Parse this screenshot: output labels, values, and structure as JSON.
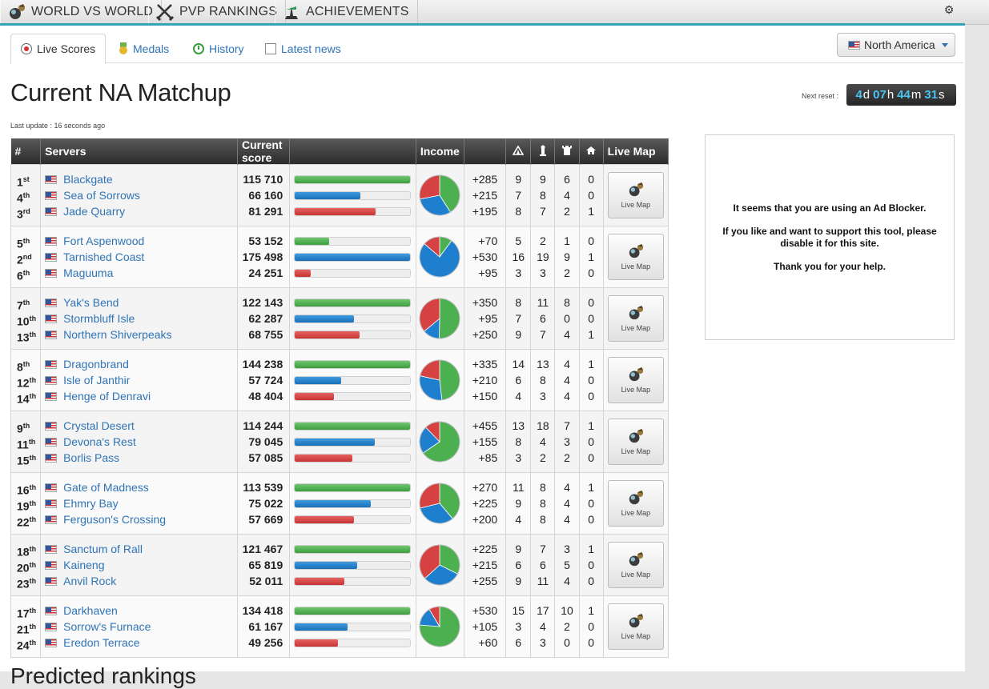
{
  "topnav": {
    "tabs": [
      {
        "label": "WORLD VS WORLD",
        "icon": "orb-icon"
      },
      {
        "label": "PVP RANKINGS",
        "icon": "crossed-swords-icon"
      },
      {
        "label": "ACHIEVEMENTS",
        "icon": "trophy-icon"
      }
    ],
    "settings_icon": "gear-icon"
  },
  "subtabs": [
    {
      "label": "Live Scores",
      "icon": "live-icon",
      "active": true
    },
    {
      "label": "Medals",
      "icon": "medal-icon",
      "active": false
    },
    {
      "label": "History",
      "icon": "history-icon",
      "active": false
    },
    {
      "label": "Latest news",
      "icon": "checkbox-icon",
      "active": false
    }
  ],
  "region": {
    "label": "North America"
  },
  "page": {
    "title": "Current NA Matchup",
    "last_update": "Last update : 16 seconds ago"
  },
  "reset": {
    "label": "Next reset :",
    "parts": [
      {
        "n": "4",
        "u": "d"
      },
      {
        "n": "07",
        "u": "h"
      },
      {
        "n": "44",
        "u": "m"
      },
      {
        "n": "31",
        "u": "s"
      }
    ]
  },
  "table": {
    "headers": {
      "rank": "#",
      "servers": "Servers",
      "score": "Current score",
      "income": "Income",
      "map": "Live Map"
    },
    "objective_icons": [
      "camp-icon",
      "tower-icon",
      "keep-icon",
      "castle-icon"
    ],
    "map_button_label": "Live Map",
    "colors": {
      "green": "#4caf50",
      "blue": "#1f7fcf",
      "red": "#d64242"
    },
    "matchups": [
      {
        "rows": [
          {
            "rank": "1",
            "suffix": "st",
            "server": "Blackgate",
            "score": "115 710",
            "bar": 1.0,
            "income": "+285",
            "obj": [
              "9",
              "9",
              "6",
              "0"
            ]
          },
          {
            "rank": "4",
            "suffix": "th",
            "server": "Sea of Sorrows",
            "score": "66 160",
            "bar": 0.57,
            "income": "+215",
            "obj": [
              "7",
              "8",
              "4",
              "0"
            ]
          },
          {
            "rank": "3",
            "suffix": "rd",
            "server": "Jade Quarry",
            "score": "81 291",
            "bar": 0.7,
            "income": "+195",
            "obj": [
              "8",
              "7",
              "2",
              "1"
            ]
          }
        ]
      },
      {
        "rows": [
          {
            "rank": "5",
            "suffix": "th",
            "server": "Fort Aspenwood",
            "score": "53 152",
            "bar": 0.3,
            "income": "+70",
            "obj": [
              "5",
              "2",
              "1",
              "0"
            ]
          },
          {
            "rank": "2",
            "suffix": "nd",
            "server": "Tarnished Coast",
            "score": "175 498",
            "bar": 1.0,
            "income": "+530",
            "obj": [
              "16",
              "19",
              "9",
              "1"
            ]
          },
          {
            "rank": "6",
            "suffix": "th",
            "server": "Maguuma",
            "score": "24 251",
            "bar": 0.14,
            "income": "+95",
            "obj": [
              "3",
              "3",
              "2",
              "0"
            ]
          }
        ]
      },
      {
        "rows": [
          {
            "rank": "7",
            "suffix": "th",
            "server": "Yak's Bend",
            "score": "122 143",
            "bar": 1.0,
            "income": "+350",
            "obj": [
              "8",
              "11",
              "8",
              "0"
            ]
          },
          {
            "rank": "10",
            "suffix": "th",
            "server": "Stormbluff Isle",
            "score": "62 287",
            "bar": 0.51,
            "income": "+95",
            "obj": [
              "7",
              "6",
              "0",
              "0"
            ]
          },
          {
            "rank": "13",
            "suffix": "th",
            "server": "Northern Shiverpeaks",
            "score": "68 755",
            "bar": 0.56,
            "income": "+250",
            "obj": [
              "9",
              "7",
              "4",
              "1"
            ]
          }
        ]
      },
      {
        "rows": [
          {
            "rank": "8",
            "suffix": "th",
            "server": "Dragonbrand",
            "score": "144 238",
            "bar": 1.0,
            "income": "+335",
            "obj": [
              "14",
              "13",
              "4",
              "1"
            ]
          },
          {
            "rank": "12",
            "suffix": "th",
            "server": "Isle of Janthir",
            "score": "57 724",
            "bar": 0.4,
            "income": "+210",
            "obj": [
              "6",
              "8",
              "4",
              "0"
            ]
          },
          {
            "rank": "14",
            "suffix": "th",
            "server": "Henge of Denravi",
            "score": "48 404",
            "bar": 0.34,
            "income": "+150",
            "obj": [
              "4",
              "3",
              "4",
              "0"
            ]
          }
        ]
      },
      {
        "rows": [
          {
            "rank": "9",
            "suffix": "th",
            "server": "Crystal Desert",
            "score": "114 244",
            "bar": 1.0,
            "income": "+455",
            "obj": [
              "13",
              "18",
              "7",
              "1"
            ]
          },
          {
            "rank": "11",
            "suffix": "th",
            "server": "Devona's Rest",
            "score": "79 045",
            "bar": 0.69,
            "income": "+155",
            "obj": [
              "8",
              "4",
              "3",
              "0"
            ]
          },
          {
            "rank": "15",
            "suffix": "th",
            "server": "Borlis Pass",
            "score": "57 085",
            "bar": 0.5,
            "income": "+85",
            "obj": [
              "3",
              "2",
              "2",
              "0"
            ]
          }
        ]
      },
      {
        "rows": [
          {
            "rank": "16",
            "suffix": "th",
            "server": "Gate of Madness",
            "score": "113 539",
            "bar": 1.0,
            "income": "+270",
            "obj": [
              "11",
              "8",
              "4",
              "1"
            ]
          },
          {
            "rank": "19",
            "suffix": "th",
            "server": "Ehmry Bay",
            "score": "75 022",
            "bar": 0.66,
            "income": "+225",
            "obj": [
              "9",
              "8",
              "4",
              "0"
            ]
          },
          {
            "rank": "22",
            "suffix": "th",
            "server": "Ferguson's Crossing",
            "score": "57 669",
            "bar": 0.51,
            "income": "+200",
            "obj": [
              "4",
              "8",
              "4",
              "0"
            ]
          }
        ]
      },
      {
        "rows": [
          {
            "rank": "18",
            "suffix": "th",
            "server": "Sanctum of Rall",
            "score": "121 467",
            "bar": 1.0,
            "income": "+225",
            "obj": [
              "9",
              "7",
              "3",
              "1"
            ]
          },
          {
            "rank": "20",
            "suffix": "th",
            "server": "Kaineng",
            "score": "65 819",
            "bar": 0.54,
            "income": "+215",
            "obj": [
              "6",
              "6",
              "5",
              "0"
            ]
          },
          {
            "rank": "23",
            "suffix": "th",
            "server": "Anvil Rock",
            "score": "52 011",
            "bar": 0.43,
            "income": "+255",
            "obj": [
              "9",
              "11",
              "4",
              "0"
            ]
          }
        ]
      },
      {
        "rows": [
          {
            "rank": "17",
            "suffix": "th",
            "server": "Darkhaven",
            "score": "134 418",
            "bar": 1.0,
            "income": "+530",
            "obj": [
              "15",
              "17",
              "10",
              "1"
            ]
          },
          {
            "rank": "21",
            "suffix": "th",
            "server": "Sorrow's Furnace",
            "score": "61 167",
            "bar": 0.46,
            "income": "+105",
            "obj": [
              "3",
              "4",
              "2",
              "0"
            ]
          },
          {
            "rank": "24",
            "suffix": "th",
            "server": "Eredon Terrace",
            "score": "49 256",
            "bar": 0.37,
            "income": "+60",
            "obj": [
              "6",
              "3",
              "0",
              "0"
            ]
          }
        ]
      }
    ]
  },
  "adblock": {
    "line1": "It seems that you are using an Ad Blocker.",
    "line2": "If you like and want to support this tool, please disable it for this site.",
    "line3": "Thank you for your help."
  },
  "bottom": {
    "title": "Predicted rankings"
  }
}
